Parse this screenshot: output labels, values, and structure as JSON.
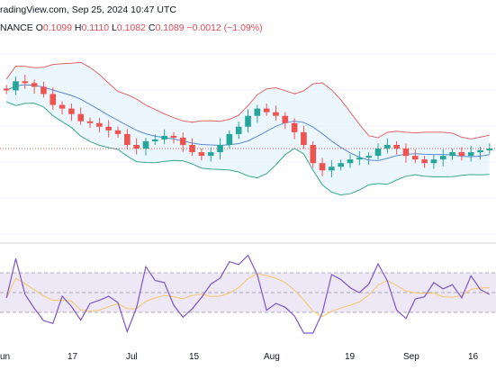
{
  "header": {
    "title_line": "radingView.com, Sep 25, 2024 10:47 UTC",
    "symbol_fragment": "NANCE",
    "ohlc": {
      "O_label": "O",
      "O": "0.1099",
      "H_label": "H",
      "H": "0.1110",
      "L_label": "L",
      "L": "0.1082",
      "C_label": "C",
      "C": "0.1089",
      "change": "−0.0012 (−1.09%)"
    }
  },
  "colors": {
    "up": "#26a69a",
    "down": "#ef5350",
    "bb_upper": "#e06666",
    "bb_lower": "#3aa88a",
    "bb_basis": "#5b8bd6",
    "bb_fill": "#e3f2fd",
    "rsi_line": "#7e57c2",
    "rsi_ma": "#f5c86a",
    "rsi_band": "#ede7f6",
    "last_price": "#ef5350"
  },
  "chart_data": {
    "type": "candlestick",
    "x_tick_labels": [
      "un",
      "17",
      "Jul",
      "15",
      "Aug",
      "19",
      "Sep",
      "16"
    ],
    "price_scale": "not shown",
    "indicators": [
      "Bollinger Bands (upper, basis, lower)",
      "RSI with moving average"
    ],
    "close_series_index": [
      0.8,
      0.85,
      0.84,
      0.82,
      0.78,
      0.72,
      0.7,
      0.67,
      0.63,
      0.62,
      0.6,
      0.58,
      0.56,
      0.5,
      0.48,
      0.52,
      0.53,
      0.55,
      0.54,
      0.5,
      0.46,
      0.44,
      0.46,
      0.5,
      0.56,
      0.6,
      0.66,
      0.7,
      0.68,
      0.66,
      0.62,
      0.57,
      0.5,
      0.4,
      0.36,
      0.38,
      0.4,
      0.42,
      0.43,
      0.44,
      0.48,
      0.5,
      0.48,
      0.44,
      0.42,
      0.4,
      0.42,
      0.44,
      0.46,
      0.44,
      0.46,
      0.47,
      0.48
    ]
  }
}
